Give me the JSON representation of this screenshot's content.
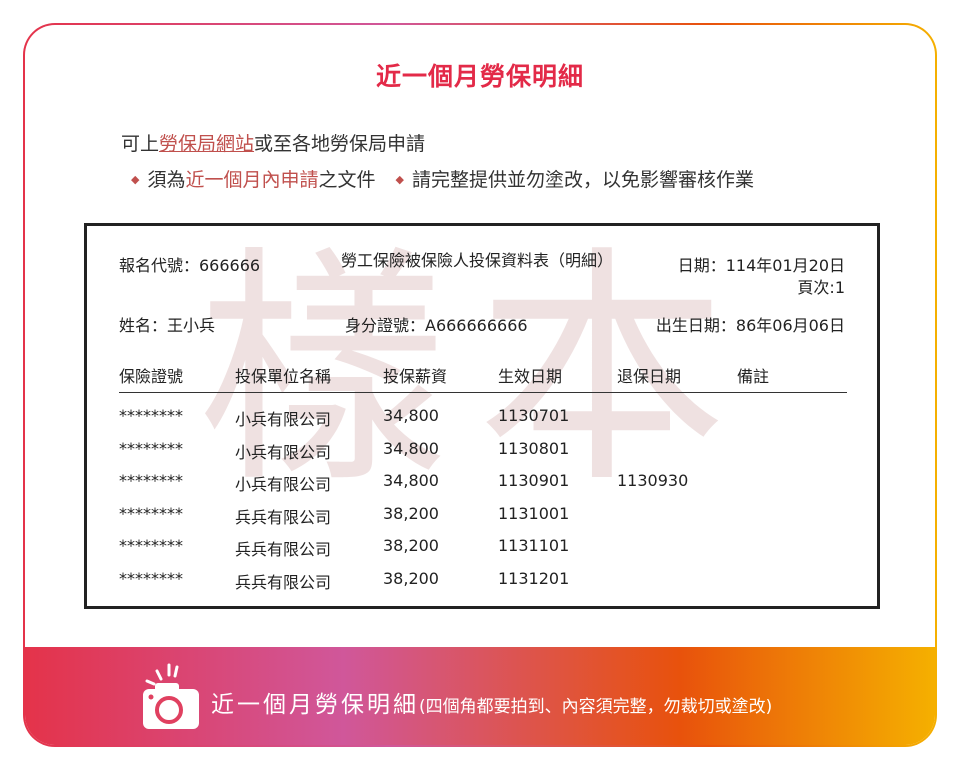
{
  "title": "近一個月勞保明細",
  "instructions": {
    "prefix": "可上",
    "link": "勞保局網站",
    "suffix": "或至各地勞保局申請",
    "bullet1_a": "須為",
    "bullet1_b": "近一個月內申請",
    "bullet1_c": "之文件",
    "bullet2": "請完整提供並勿塗改，以免影響審核作業"
  },
  "document": {
    "watermark": "樣本",
    "code_label": "報名代號：666666",
    "form_title": "勞工保險被保險人投保資料表（明細）",
    "date": "日期：114年01月20日",
    "page": "頁次:1",
    "name": "姓名：王小兵",
    "id": "身分證號：A666666666",
    "birth": "出生日期：86年06月06日",
    "columns": [
      "保險證號",
      "投保單位名稱",
      "投保薪資",
      "生效日期",
      "退保日期",
      "備註"
    ],
    "rows": [
      [
        "********",
        "小兵有限公司",
        "34,800",
        "1130701",
        "",
        ""
      ],
      [
        "********",
        "小兵有限公司",
        "34,800",
        "1130801",
        "",
        ""
      ],
      [
        "********",
        "小兵有限公司",
        "34,800",
        "1130901",
        "1130930",
        ""
      ],
      [
        "********",
        "兵兵有限公司",
        "38,200",
        "1131001",
        "",
        ""
      ],
      [
        "********",
        "兵兵有限公司",
        "38,200",
        "1131101",
        "",
        ""
      ],
      [
        "********",
        "兵兵有限公司",
        "38,200",
        "1131201",
        "",
        ""
      ]
    ]
  },
  "footer": {
    "main": "近一個月勞保明細",
    "note": "(四個角都要拍到、內容須完整，勿裁切或塗改)",
    "icon": "camera-icon"
  },
  "colors": {
    "accent": "#e32a48",
    "link": "#c0504d"
  }
}
